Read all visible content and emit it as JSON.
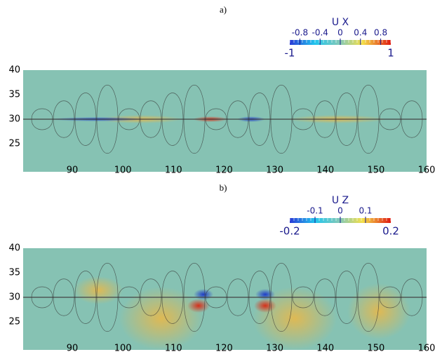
{
  "panels": [
    {
      "label": "a)",
      "colorbar": {
        "title": "U X",
        "ticks": [
          -0.8,
          -0.4,
          0,
          0.4,
          0.8
        ],
        "ends": [
          -1,
          1
        ]
      },
      "yticks": [
        40,
        35,
        30,
        25
      ],
      "xticks": [
        90,
        100,
        110,
        120,
        130,
        140,
        150,
        160
      ]
    },
    {
      "label": "b)",
      "colorbar": {
        "title": "U Z",
        "ticks": [
          -0.1,
          0,
          0.1
        ],
        "ends": [
          -0.2,
          0.2
        ]
      },
      "yticks": [
        40,
        35,
        30,
        25
      ],
      "xticks": [
        90,
        100,
        110,
        120,
        130,
        140,
        150,
        160
      ]
    }
  ]
}
